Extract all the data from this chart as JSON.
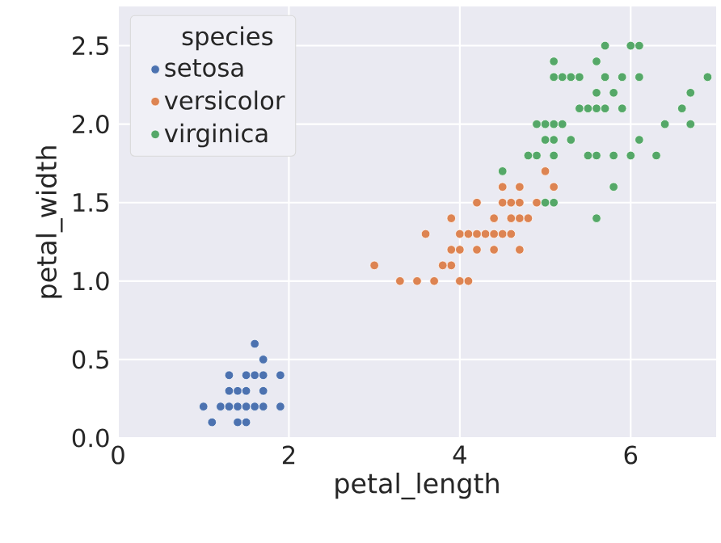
{
  "chart_data": {
    "type": "scatter",
    "xlabel": "petal_length",
    "ylabel": "petal_width",
    "legend_title": "species",
    "legend": "top left",
    "grid": true,
    "xlim": [
      0,
      7
    ],
    "ylim": [
      0,
      2.75
    ],
    "xticks": [
      0,
      2,
      4,
      6
    ],
    "yticks": [
      {
        "value": 0,
        "label": "0.0"
      },
      {
        "value": 0.5,
        "label": "0.5"
      },
      {
        "value": 1,
        "label": "1.0"
      },
      {
        "value": 1.5,
        "label": "1.5"
      },
      {
        "value": 2,
        "label": "2.0"
      },
      {
        "value": 2.5,
        "label": "2.5"
      }
    ],
    "series": [
      {
        "name": "setosa",
        "color": "#4c72b0",
        "x": [
          1.0,
          1.2,
          1.3,
          1.4,
          1.5,
          1.6,
          1.7,
          1.9,
          1.1,
          1.4,
          1.5,
          1.3,
          1.4,
          1.5,
          1.7,
          1.3,
          1.5,
          1.6,
          1.7,
          1.9,
          1.7,
          1.6
        ],
        "values": [
          0.2,
          0.2,
          0.2,
          0.2,
          0.2,
          0.2,
          0.2,
          0.2,
          0.1,
          0.1,
          0.1,
          0.3,
          0.3,
          0.3,
          0.3,
          0.4,
          0.4,
          0.4,
          0.4,
          0.4,
          0.5,
          0.6
        ]
      },
      {
        "name": "versicolor",
        "color": "#dd8452",
        "x": [
          4.7,
          4.5,
          4.9,
          4.0,
          4.6,
          4.5,
          4.7,
          3.3,
          4.6,
          3.9,
          3.5,
          4.2,
          4.0,
          3.6,
          4.4,
          4.1,
          3.9,
          4.7,
          4.3,
          4.8,
          5.0,
          3.8,
          3.7,
          3.9,
          5.1,
          4.5,
          4.7,
          4.4,
          4.1,
          4.4,
          4.6,
          4.0,
          4.2,
          4.2,
          3.0
        ],
        "values": [
          1.4,
          1.5,
          1.5,
          1.3,
          1.5,
          1.3,
          1.6,
          1.0,
          1.3,
          1.4,
          1.0,
          1.5,
          1.0,
          1.3,
          1.4,
          1.0,
          1.1,
          1.2,
          1.3,
          1.4,
          1.7,
          1.1,
          1.0,
          1.2,
          1.6,
          1.6,
          1.5,
          1.3,
          1.3,
          1.2,
          1.4,
          1.2,
          1.3,
          1.2,
          1.1
        ]
      },
      {
        "name": "virginica",
        "color": "#55a868",
        "x": [
          6.0,
          5.1,
          5.9,
          5.6,
          5.8,
          6.6,
          4.5,
          6.3,
          5.8,
          6.1,
          5.1,
          5.3,
          5.5,
          5.0,
          5.1,
          5.3,
          5.5,
          6.7,
          6.9,
          5.0,
          5.7,
          4.9,
          6.7,
          4.9,
          5.7,
          6.0,
          4.8,
          5.6,
          5.8,
          6.1,
          6.4,
          5.6,
          5.1,
          5.6,
          6.1,
          5.6,
          5.4,
          5.1,
          5.9,
          5.7,
          5.2,
          5.0,
          5.2,
          5.4,
          5.1
        ],
        "values": [
          2.5,
          1.9,
          2.1,
          1.8,
          2.2,
          2.1,
          1.7,
          1.8,
          1.8,
          2.5,
          2.0,
          1.9,
          2.1,
          2.0,
          2.4,
          2.3,
          1.8,
          2.2,
          2.3,
          1.5,
          2.3,
          2.0,
          2.0,
          1.8,
          2.1,
          1.8,
          1.8,
          2.1,
          1.6,
          1.9,
          2.0,
          2.2,
          1.5,
          1.4,
          2.3,
          2.4,
          2.1,
          2.3,
          2.3,
          2.5,
          2.3,
          1.9,
          2.0,
          2.3,
          1.8
        ]
      }
    ]
  }
}
